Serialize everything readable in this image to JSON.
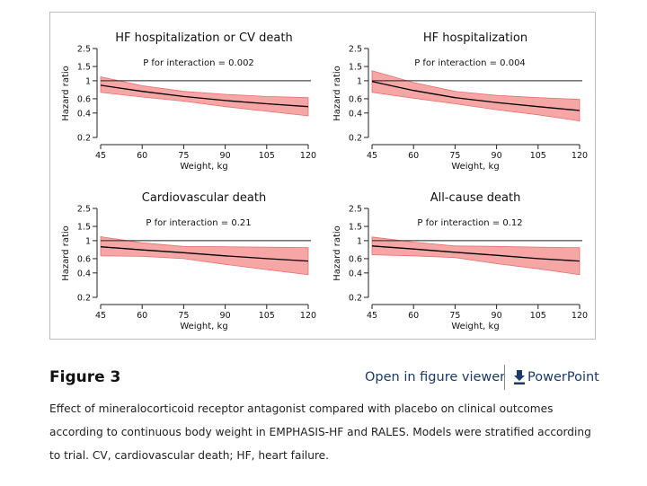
{
  "figure": {
    "label": "Figure 3",
    "open_viewer_label": "Open in figure viewer",
    "powerpoint_label": "PowerPoint",
    "caption": "Effect of mineralocorticoid receptor antagonist compared with placebo on clinical outcomes according to continuous body weight in EMPHASIS-HF and RALES. Models were stratified according to trial. CV, cardiovascular death; HF, heart failure."
  },
  "colors": {
    "band": "#f7a6a6",
    "band_edge": "#e8706f",
    "line": "#000000",
    "link": "#1a3a6b"
  },
  "chart_data": [
    {
      "type": "line",
      "title": "HF hospitalization or CV death",
      "annotation": "P for interaction = 0.002",
      "xlabel": "Weight, kg",
      "ylabel": "Hazard ratio",
      "x_ticks": [
        45,
        60,
        75,
        90,
        105,
        120
      ],
      "y_ticks": [
        0.2,
        0.4,
        0.6,
        1,
        1.5,
        2.5
      ],
      "y_tick_labels": [
        "0.2",
        "0.4",
        "0.6",
        "1",
        "1.5",
        "2.5"
      ],
      "ylim": [
        0.2,
        2.5
      ],
      "xlim": [
        45,
        120
      ],
      "yscale": "log",
      "reference": 1,
      "x": [
        45,
        60,
        75,
        90,
        105,
        120
      ],
      "hr": [
        0.88,
        0.74,
        0.64,
        0.57,
        0.52,
        0.48
      ],
      "lower": [
        0.72,
        0.63,
        0.56,
        0.48,
        0.42,
        0.37
      ],
      "upper": [
        1.12,
        0.87,
        0.74,
        0.68,
        0.64,
        0.62
      ]
    },
    {
      "type": "line",
      "title": "HF hospitalization",
      "annotation": "P for interaction = 0.004",
      "xlabel": "Weight, kg",
      "ylabel": "Hazard ratio",
      "x_ticks": [
        45,
        60,
        75,
        90,
        105,
        120
      ],
      "y_ticks": [
        0.2,
        0.4,
        0.6,
        1,
        1.5,
        2.5
      ],
      "y_tick_labels": [
        "0.2",
        "0.4",
        "0.6",
        "1",
        "1.5",
        "2.5"
      ],
      "ylim": [
        0.2,
        2.5
      ],
      "xlim": [
        45,
        120
      ],
      "yscale": "log",
      "reference": 1,
      "x": [
        45,
        60,
        75,
        90,
        105,
        120
      ],
      "hr": [
        0.98,
        0.76,
        0.62,
        0.54,
        0.48,
        0.43
      ],
      "lower": [
        0.72,
        0.61,
        0.52,
        0.44,
        0.38,
        0.32
      ],
      "upper": [
        1.33,
        0.95,
        0.74,
        0.66,
        0.62,
        0.59
      ]
    },
    {
      "type": "line",
      "title": "Cardiovascular death",
      "annotation": "P for interaction = 0.21",
      "xlabel": "Weight, kg",
      "ylabel": "Hazard ratio",
      "x_ticks": [
        45,
        60,
        75,
        90,
        105,
        120
      ],
      "y_ticks": [
        0.2,
        0.4,
        0.6,
        1,
        1.5,
        2.5
      ],
      "y_tick_labels": [
        "0.2",
        "0.4",
        "0.6",
        "1",
        "1.5",
        "2.5"
      ],
      "ylim": [
        0.2,
        2.5
      ],
      "xlim": [
        45,
        120
      ],
      "yscale": "log",
      "reference": 1,
      "x": [
        45,
        60,
        75,
        90,
        105,
        120
      ],
      "hr": [
        0.84,
        0.77,
        0.71,
        0.65,
        0.6,
        0.56
      ],
      "lower": [
        0.65,
        0.64,
        0.6,
        0.51,
        0.44,
        0.38
      ],
      "upper": [
        1.12,
        0.94,
        0.85,
        0.84,
        0.83,
        0.82
      ]
    },
    {
      "type": "line",
      "title": "All-cause death",
      "annotation": "P for interaction = 0.12",
      "xlabel": "Weight, kg",
      "ylabel": "Hazard ratio",
      "x_ticks": [
        45,
        60,
        75,
        90,
        105,
        120
      ],
      "y_ticks": [
        0.2,
        0.4,
        0.6,
        1,
        1.5,
        2.5
      ],
      "y_tick_labels": [
        "0.2",
        "0.4",
        "0.6",
        "1",
        "1.5",
        "2.5"
      ],
      "ylim": [
        0.2,
        2.5
      ],
      "xlim": [
        45,
        120
      ],
      "yscale": "log",
      "reference": 1,
      "x": [
        45,
        60,
        75,
        90,
        105,
        120
      ],
      "hr": [
        0.86,
        0.79,
        0.72,
        0.66,
        0.6,
        0.56
      ],
      "lower": [
        0.67,
        0.65,
        0.62,
        0.52,
        0.45,
        0.38
      ],
      "upper": [
        1.11,
        0.96,
        0.86,
        0.85,
        0.83,
        0.82
      ]
    }
  ]
}
